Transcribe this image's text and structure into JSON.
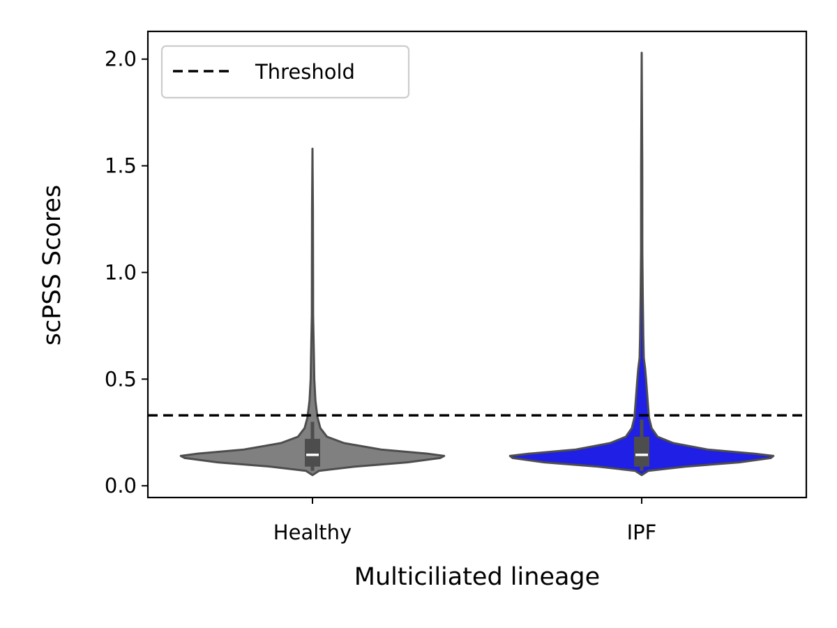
{
  "chart_data": {
    "type": "violin",
    "title": "",
    "xlabel": "Multiciliated lineage",
    "ylabel": "scPSS Scores",
    "categories": [
      "Healthy",
      "IPF"
    ],
    "ylim": [
      -0.055,
      2.13
    ],
    "yticks": [
      0.0,
      0.5,
      1.0,
      1.5,
      2.0
    ],
    "ytick_labels": [
      "0.0",
      "0.5",
      "1.0",
      "1.5",
      "2.0"
    ],
    "grid": false,
    "legend": {
      "position": "top-left",
      "entries": [
        "Threshold"
      ]
    },
    "threshold": {
      "label": "Threshold",
      "value": 0.33,
      "style": "dashed",
      "color": "#000000"
    },
    "series": [
      {
        "category": "Healthy",
        "color": "#808080",
        "min": 0.05,
        "max": 1.58,
        "q1": 0.09,
        "median": 0.145,
        "q3": 0.22,
        "whisker_low": 0.07,
        "whisker_high": 0.3,
        "density_profile": [
          [
            0.05,
            0.0
          ],
          [
            0.07,
            0.05
          ],
          [
            0.09,
            0.32
          ],
          [
            0.11,
            0.72
          ],
          [
            0.13,
            0.97
          ],
          [
            0.14,
            1.0
          ],
          [
            0.15,
            0.88
          ],
          [
            0.17,
            0.52
          ],
          [
            0.2,
            0.24
          ],
          [
            0.23,
            0.11
          ],
          [
            0.27,
            0.06
          ],
          [
            0.32,
            0.038
          ],
          [
            0.4,
            0.022
          ],
          [
            0.5,
            0.014
          ],
          [
            0.6,
            0.011
          ],
          [
            0.7,
            0.008
          ],
          [
            0.8,
            0.005
          ],
          [
            1.0,
            0.004
          ],
          [
            1.3,
            0.003
          ],
          [
            1.58,
            0.0
          ]
        ]
      },
      {
        "category": "IPF",
        "color": "#1f1fe6",
        "min": 0.05,
        "max": 2.03,
        "q1": 0.09,
        "median": 0.145,
        "q3": 0.23,
        "whisker_low": 0.07,
        "whisker_high": 0.31,
        "density_profile": [
          [
            0.05,
            0.0
          ],
          [
            0.07,
            0.05
          ],
          [
            0.09,
            0.33
          ],
          [
            0.11,
            0.74
          ],
          [
            0.13,
            0.98
          ],
          [
            0.14,
            1.0
          ],
          [
            0.15,
            0.86
          ],
          [
            0.17,
            0.5
          ],
          [
            0.2,
            0.24
          ],
          [
            0.23,
            0.12
          ],
          [
            0.27,
            0.075
          ],
          [
            0.32,
            0.055
          ],
          [
            0.4,
            0.045
          ],
          [
            0.5,
            0.033
          ],
          [
            0.55,
            0.026
          ],
          [
            0.6,
            0.016
          ],
          [
            0.7,
            0.012
          ],
          [
            0.8,
            0.01
          ],
          [
            0.9,
            0.008
          ],
          [
            1.1,
            0.005
          ],
          [
            1.5,
            0.004
          ],
          [
            2.03,
            0.0
          ]
        ]
      }
    ]
  }
}
